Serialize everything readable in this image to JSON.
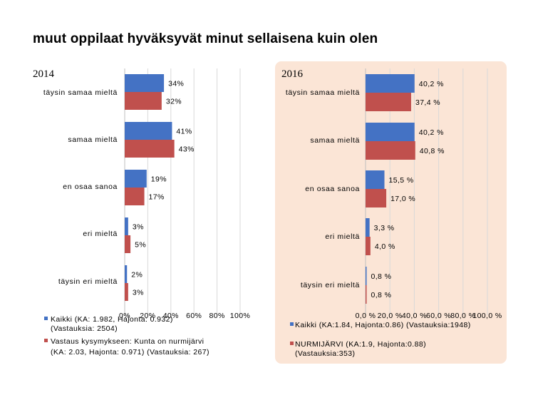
{
  "title": "muut oppilaat hyväksyvät minut sellaisena kuin olen",
  "colors": {
    "blue": "#4472c4",
    "red": "#c0504d",
    "panel": "#fbe5d6",
    "grid": "#d9d9d9"
  },
  "chart_data": [
    {
      "type": "bar",
      "orientation": "horizontal",
      "title": "2014",
      "categories": [
        "täysin samaa mieltä",
        "samaa mieltä",
        "en osaa sanoa",
        "eri mieltä",
        "täysin eri mieltä"
      ],
      "series": [
        {
          "name": "Kaikki (KA: 1.982, Hajonta: 0.932) (Vastauksia: 2504)",
          "values": [
            34,
            41,
            19,
            3,
            2
          ],
          "labels": [
            "34%",
            "41%",
            "19%",
            "3%",
            "2%"
          ],
          "color": "#4472c4"
        },
        {
          "name": "Vastaus kysymykseen: Kunta on nurmijärvi (KA: 2.03, Hajonta: 0.971) (Vastauksia: 267)",
          "values": [
            32,
            43,
            17,
            5,
            3
          ],
          "labels": [
            "32%",
            "43%",
            "17%",
            "5%",
            "3%"
          ],
          "color": "#c0504d"
        }
      ],
      "xlim": [
        0,
        100
      ],
      "xticks": [
        "0%",
        "20%",
        "40%",
        "60%",
        "80%",
        "100%"
      ],
      "legend": [
        "Kaikki (KA: 1.982, Hajonta: 0.932)",
        "(Vastauksia: 2504)",
        "Vastaus kysymykseen: Kunta on nurmijärvi",
        "(KA: 2.03, Hajonta: 0.971) (Vastauksia: 267)"
      ],
      "grid": true
    },
    {
      "type": "bar",
      "orientation": "horizontal",
      "title": "2016",
      "categories": [
        "täysin samaa mieltä",
        "samaa mieltä",
        "en osaa sanoa",
        "eri mieltä",
        "täysin eri mieltä"
      ],
      "series": [
        {
          "name": "Kaikki (KA:1.84, Hajonta:0.86) (Vastauksia:1948)",
          "values": [
            40.2,
            40.2,
            15.5,
            3.3,
            0.8
          ],
          "labels": [
            "40,2 %",
            "40,2 %",
            "15,5 %",
            "3,3 %",
            "0,8 %"
          ],
          "color": "#4472c4"
        },
        {
          "name": "NURMIJÄRVI (KA:1.9, Hajonta:0.88) (Vastauksia:353)",
          "values": [
            37.4,
            40.8,
            17.0,
            4.0,
            0.8
          ],
          "labels": [
            "37,4 %",
            "40,8 %",
            "17,0 %",
            "4,0 %",
            "0,8 %"
          ],
          "color": "#c0504d"
        }
      ],
      "xlim": [
        0,
        100
      ],
      "xticks": [
        "0,0 %",
        "20,0 %",
        "40,0 %",
        "60,0 %",
        "80,0 %",
        "100,0 %"
      ],
      "legend": [
        "Kaikki (KA:1.84, Hajonta:0.86) (Vastauksia:1948)",
        "NURMIJÄRVI (KA:1.9, Hajonta:0.88)",
        "(Vastauksia:353)"
      ],
      "grid": true
    }
  ]
}
